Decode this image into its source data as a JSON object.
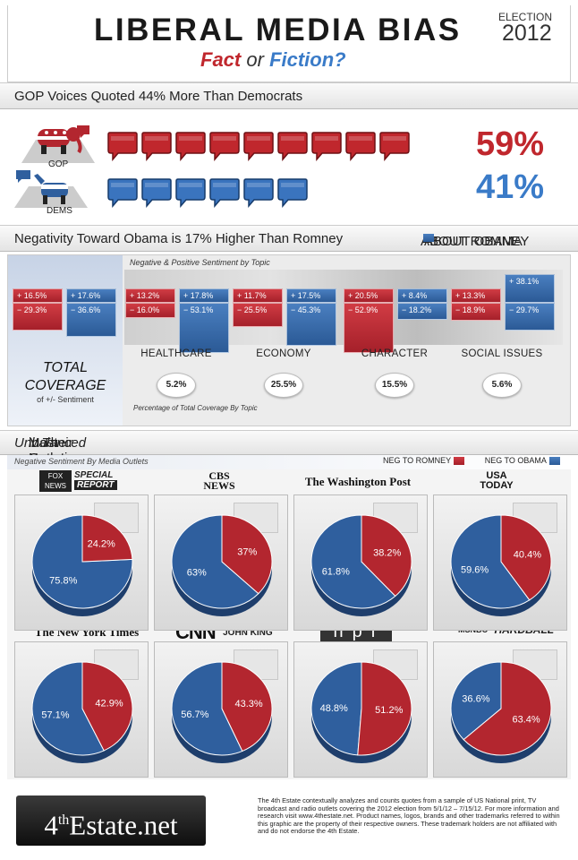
{
  "header": {
    "title": "LIBERAL MEDIA BIAS",
    "fact": "Fact",
    "or": "or",
    "fiction": "Fiction?",
    "election_label": "ELECTION",
    "election_year": "2012"
  },
  "gop_section": {
    "headline": "GOP Voices Quoted 44% More Than Democrats",
    "gop_label": "GOP",
    "dems_label": "DEMS",
    "gop_pct": "59%",
    "dems_pct": "41%",
    "gop_bubbles": 9,
    "dems_bubbles": 6
  },
  "negativity": {
    "headline": "Negativity Toward Obama is 17% Higher Than Romney",
    "legend_romney": "ABOUT ROMNEY",
    "legend_obama": "ABOUT OBAMA",
    "subtitle": "Negative & Positive Sentiment by Topic",
    "total_title": "TOTAL COVERAGE",
    "total_sub": "of +/- Sentiment",
    "footnote": "Percentage of Total Coverage By Topic"
  },
  "colors": {
    "red": "#b3262f",
    "blue": "#2f5f9e"
  },
  "chart_data": [
    {
      "type": "bar",
      "title": "Negative & Positive Sentiment by Topic",
      "categories": [
        "Total",
        "Healthcare",
        "Economy",
        "Character",
        "Social Issues"
      ],
      "series": [
        {
          "name": "Romney positive",
          "values": [
            "+ 16.5%",
            "+ 13.2%",
            "+ 11.7%",
            "+ 20.5%",
            "+ 13.3%"
          ]
        },
        {
          "name": "Romney negative",
          "values": [
            "− 29.3%",
            "− 16.0%",
            "− 25.5%",
            "− 52.9%",
            "− 18.9%"
          ]
        },
        {
          "name": "Obama positive",
          "values": [
            "+ 17.6%",
            "+ 17.8%",
            "+ 17.5%",
            "+ 8.4%",
            "+ 38.1%"
          ]
        },
        {
          "name": "Obama negative",
          "values": [
            "− 36.6%",
            "− 53.1%",
            "− 45.3%",
            "− 18.2%",
            "− 29.7%"
          ]
        }
      ],
      "topics": [
        {
          "name": "HEALTHCARE",
          "coverage": "5.2%"
        },
        {
          "name": "ECONOMY",
          "coverage": "25.5%"
        },
        {
          "name": "CHARACTER",
          "coverage": "15.5%"
        },
        {
          "name": "SOCIAL ISSUES",
          "coverage": "5.6%"
        }
      ]
    },
    {
      "type": "pie",
      "title": "Negative Sentiment By Media Outlets",
      "legend": [
        "NEG TO ROMNEY",
        "NEG TO OBAMA"
      ],
      "outlets": [
        {
          "name": "FOX NEWS SPECIAL REPORT",
          "romney": 24.2,
          "obama": 75.8,
          "romney_label": "24.2%",
          "obama_label": "75.8%"
        },
        {
          "name": "CBS NEWS",
          "romney": 37,
          "obama": 63,
          "romney_label": "37%",
          "obama_label": "63%"
        },
        {
          "name": "The Washington Post",
          "romney": 38.2,
          "obama": 61.8,
          "romney_label": "38.2%",
          "obama_label": "61.8%"
        },
        {
          "name": "USA TODAY",
          "romney": 40.4,
          "obama": 59.6,
          "romney_label": "40.4%",
          "obama_label": "59.6%"
        },
        {
          "name": "The New York Times",
          "romney": 42.9,
          "obama": 57.1,
          "romney_label": "42.9%",
          "obama_label": "57.1%"
        },
        {
          "name": "CNN JOHN KING",
          "romney": 43.3,
          "obama": 56.7,
          "romney_label": "43.3%",
          "obama_label": "56.7%"
        },
        {
          "name": "npr",
          "romney": 51.2,
          "obama": 48.8,
          "romney_label": "51.2%",
          "obama_label": "48.8%"
        },
        {
          "name": "MSNBC HARDBALL",
          "romney": 63.4,
          "obama": 36.6,
          "romney_label": "63.4%",
          "obama_label": "36.6%"
        }
      ]
    }
  ],
  "outlets_section": {
    "headline_a": "Most Outlets are ",
    "headline_em": "Unbalanced",
    "headline_b": " in Their Negative Coverage",
    "subtitle": "Negative Sentiment By Media Outlets",
    "legend_romney": "NEG TO ROMNEY",
    "legend_obama": "NEG TO OBAMA"
  },
  "logos": {
    "fox1": "FOX",
    "fox2": "NEWS",
    "special": "SPECIAL",
    "report": "REPORT",
    "cbs": "CBS",
    "news": "NEWS",
    "wapo": "The Washington Post",
    "usa": "USA",
    "today": "TODAY",
    "nyt": "The New York Times",
    "cnn": "CNN",
    "johnking": "JOHN KING",
    "npr": "npr",
    "msnbc": "MSNBC",
    "hardball": "HARDBALL"
  },
  "footer": {
    "brand_a": "4",
    "brand_sup": "th",
    "brand_b": "Estate.net",
    "text": "The 4th Estate contextually analyzes and counts quotes from a sample of US National print, TV broadcast and radio outlets covering the 2012 election from 5/1/12 – 7/15/12. For more information and research visit www.4thestate.net.  Product names, logos, brands and other trademarks referred to within this graphic are the property of their respective owners. These trademark holders are not affiliated with and do not endorse the 4th Estate."
  }
}
